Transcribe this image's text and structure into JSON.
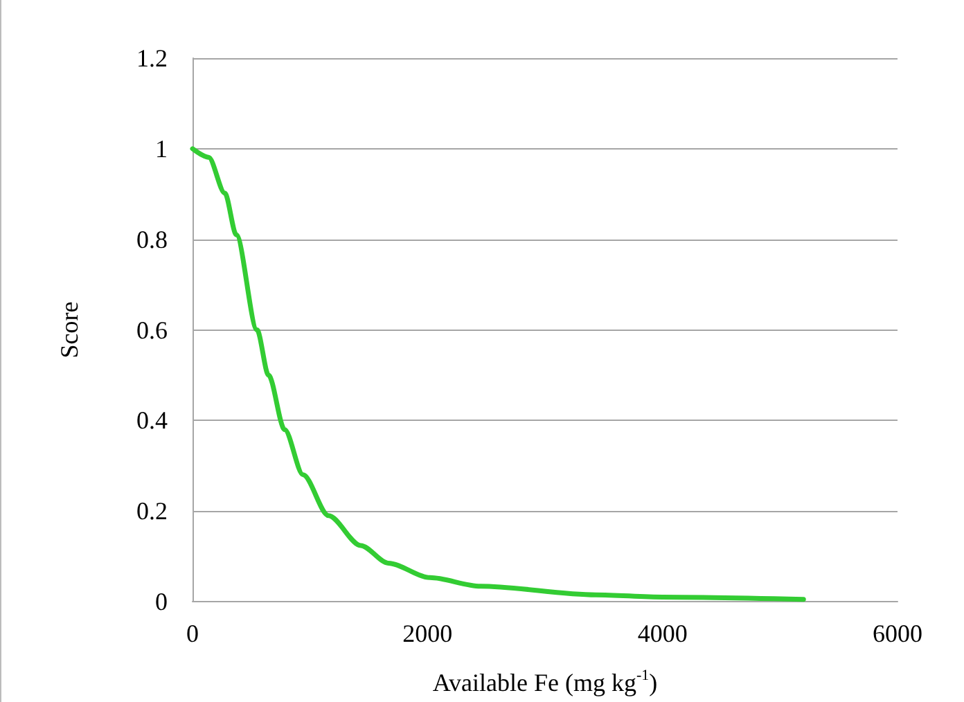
{
  "chart_data": {
    "type": "line",
    "xlabel": "Available Fe (mg kg$^{-1}$)",
    "ylabel": "Score",
    "series": [
      {
        "color": "#33cc33",
        "x": [
          0,
          137,
          275,
          373,
          549,
          647,
          784,
          941,
          1157,
          1431,
          1667,
          2020,
          2451,
          3431,
          4000,
          5200
        ],
        "values": [
          1.0,
          0.981,
          0.902,
          0.81,
          0.6,
          0.5,
          0.38,
          0.28,
          0.19,
          0.124,
          0.085,
          0.053,
          0.034,
          0.015,
          0.01,
          0.005
        ]
      }
    ],
    "xlim": [
      0,
      6000
    ],
    "xticks": [
      0,
      2000,
      4000,
      6000
    ],
    "ylim": [
      0,
      1.2
    ],
    "yticks": [
      0,
      0.2,
      0.4,
      0.6,
      0.8,
      1,
      1.2
    ],
    "grid": "y",
    "marker": "none",
    "line_style": "solid"
  }
}
